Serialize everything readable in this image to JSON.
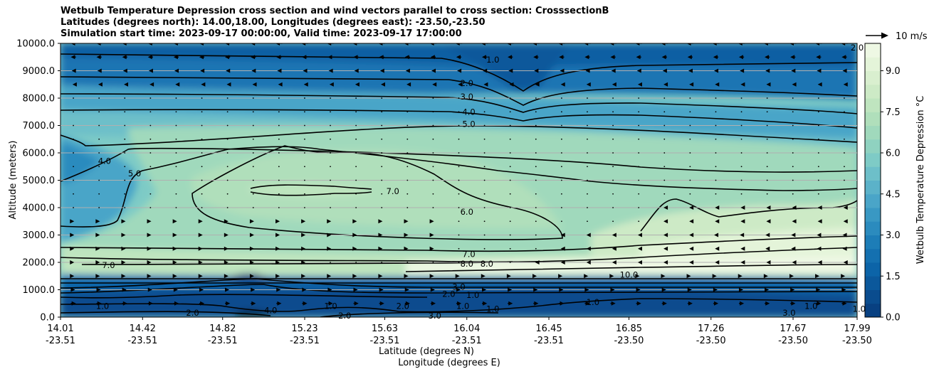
{
  "chart_data": {
    "type": "heatmap",
    "title_lines": [
      "Wetbulb Temperature Depression cross section and wind vectors parallel to cross section: CrosssectionB",
      "Latitudes (degrees north): 14.00,18.00, Longitudes (degrees east): -23.50,-23.50",
      "Simulation start time: 2023-09-17 00:00:00, Valid time: 2023-09-17 17:00:00"
    ],
    "ylabel": "Altitude (meters)",
    "xlabel_lines": [
      "Latitude (degrees N)",
      "Longitude (degrees E)"
    ],
    "ylim": [
      0,
      10000
    ],
    "y_ticks": [
      {
        "value": 0,
        "label": "0.0"
      },
      {
        "value": 1000,
        "label": "1000.0"
      },
      {
        "value": 2000,
        "label": "2000.0"
      },
      {
        "value": 3000,
        "label": "3000.0"
      },
      {
        "value": 4000,
        "label": "4000.0"
      },
      {
        "value": 5000,
        "label": "5000.0"
      },
      {
        "value": 6000,
        "label": "6000.0"
      },
      {
        "value": 7000,
        "label": "7000.0"
      },
      {
        "value": 8000,
        "label": "8000.0"
      },
      {
        "value": 9000,
        "label": "9000.0"
      },
      {
        "value": 10000,
        "label": "10000.0"
      }
    ],
    "x_range": [
      14.01,
      17.99
    ],
    "x_ticks": [
      {
        "lat": 14.01,
        "lat_label": "14.01",
        "lon_label": "-23.51"
      },
      {
        "lat": 14.42,
        "lat_label": "14.42",
        "lon_label": "-23.51"
      },
      {
        "lat": 14.82,
        "lat_label": "14.82",
        "lon_label": "-23.51"
      },
      {
        "lat": 15.23,
        "lat_label": "15.23",
        "lon_label": "-23.51"
      },
      {
        "lat": 15.63,
        "lat_label": "15.63",
        "lon_label": "-23.51"
      },
      {
        "lat": 16.04,
        "lat_label": "16.04",
        "lon_label": "-23.51"
      },
      {
        "lat": 16.45,
        "lat_label": "16.45",
        "lon_label": "-23.51"
      },
      {
        "lat": 16.85,
        "lat_label": "16.85",
        "lon_label": "-23.50"
      },
      {
        "lat": 17.26,
        "lat_label": "17.26",
        "lon_label": "-23.50"
      },
      {
        "lat": 17.67,
        "lat_label": "17.67",
        "lon_label": "-23.50"
      },
      {
        "lat": 17.99,
        "lat_label": "17.99",
        "lon_label": "-23.50"
      }
    ],
    "colorbar": {
      "label": "Wetbulb Temperature Depression $^\\circ$C",
      "label_display": "Wetbulb Temperature Depression °C",
      "range": [
        0,
        10
      ],
      "ticks": [
        "0.0",
        "1.5",
        "3.0",
        "4.5",
        "6.0",
        "7.5",
        "9.0"
      ],
      "tick_values": [
        0,
        1.5,
        3.0,
        4.5,
        6.0,
        7.5,
        9.0
      ],
      "step": 0.5,
      "colors": [
        "#084081",
        "#0a4c8e",
        "#0b589b",
        "#0c64a8",
        "#1470b0",
        "#1d7db7",
        "#2b8bbe",
        "#3998c3",
        "#4aa5c8",
        "#5bb2c9",
        "#6dbfc9",
        "#7ecbc6",
        "#8fd2c0",
        "#a0d9bc",
        "#b0dfbb",
        "#bfe5bf",
        "#cdeac6",
        "#d9efcf",
        "#e4f4d9",
        "#eef8e4"
      ]
    },
    "wind_reference": {
      "label": "10 m/s",
      "speed": 10
    },
    "contour_labels": [
      {
        "text": "1.0",
        "lat": 16.17,
        "alt": 9400
      },
      {
        "text": "2.0",
        "lat": 16.04,
        "alt": 8550
      },
      {
        "text": "3.0",
        "lat": 16.04,
        "alt": 8050
      },
      {
        "text": "4.0",
        "lat": 16.05,
        "alt": 7500
      },
      {
        "text": "5.0",
        "lat": 16.05,
        "alt": 7050
      },
      {
        "text": "4.0",
        "lat": 14.23,
        "alt": 5700
      },
      {
        "text": "5.0",
        "lat": 14.38,
        "alt": 5250
      },
      {
        "text": "7.0",
        "lat": 15.67,
        "alt": 4600
      },
      {
        "text": "6.0",
        "lat": 16.04,
        "alt": 3850
      },
      {
        "text": "7.0",
        "lat": 16.05,
        "alt": 2300
      },
      {
        "text": "8.0",
        "lat": 16.04,
        "alt": 1950
      },
      {
        "text": "8.0",
        "lat": 16.14,
        "alt": 1950
      },
      {
        "text": "7.0",
        "lat": 14.25,
        "alt": 1900
      },
      {
        "text": "10.0",
        "lat": 16.85,
        "alt": 1550
      },
      {
        "text": "1.0",
        "lat": 14.22,
        "alt": 400
      },
      {
        "text": "2.0",
        "lat": 14.67,
        "alt": 150
      },
      {
        "text": "4.0",
        "lat": 15.06,
        "alt": 250
      },
      {
        "text": "1.0",
        "lat": 15.36,
        "alt": 400
      },
      {
        "text": "2.0",
        "lat": 15.43,
        "alt": 50
      },
      {
        "text": "2.0",
        "lat": 15.72,
        "alt": 400
      },
      {
        "text": "3.0",
        "lat": 15.88,
        "alt": 50
      },
      {
        "text": "1.0",
        "lat": 16.02,
        "alt": 400
      },
      {
        "text": "1.0",
        "lat": 16.07,
        "alt": 800
      },
      {
        "text": "3.0",
        "lat": 16.0,
        "alt": 1100
      },
      {
        "text": "2.0",
        "lat": 15.95,
        "alt": 850
      },
      {
        "text": "1.0",
        "lat": 16.17,
        "alt": 300
      },
      {
        "text": "1.0",
        "lat": 16.67,
        "alt": 550
      },
      {
        "text": "3.0",
        "lat": 17.65,
        "alt": 150
      },
      {
        "text": "1.0",
        "lat": 17.76,
        "alt": 400
      },
      {
        "text": "1.0",
        "lat": 18.0,
        "alt": 300
      },
      {
        "text": "2.0",
        "lat": 17.99,
        "alt": 9850
      }
    ],
    "wind_levels": [
      {
        "alt": 10000,
        "u": [
          -3,
          -3,
          -3,
          -3,
          -3,
          -3,
          -3,
          -3,
          -4,
          -4,
          -4,
          -4,
          -4,
          -4,
          -4,
          -4,
          -4,
          -4,
          -4,
          -4,
          -4,
          -4,
          -4,
          -4,
          -4,
          -4,
          -4,
          -4,
          -4,
          -4,
          -4
        ]
      },
      {
        "alt": 9500,
        "u": [
          -3,
          -3,
          -3,
          -3,
          -3,
          -3,
          -3,
          -3,
          -3,
          -3,
          -3,
          -3,
          -3,
          -3,
          -3,
          -3,
          -3,
          -3,
          -3,
          -3,
          -3,
          -3,
          -3,
          -3,
          -3,
          -3,
          -3,
          -3,
          -3,
          -3,
          -3
        ]
      },
      {
        "alt": 9000,
        "u": [
          -2,
          -2,
          -2,
          -2,
          -2,
          -2,
          -2,
          -2,
          -2,
          -2,
          -2,
          -2,
          -2,
          -2,
          -2,
          -2,
          -2,
          -2,
          -2,
          -2,
          -2,
          -2,
          -2,
          -2,
          -2,
          -2,
          -2,
          -2,
          -2,
          -2,
          -2
        ]
      },
      {
        "alt": 8500,
        "u": [
          -1,
          -1,
          -1,
          -1,
          -1,
          -1,
          -1,
          -1,
          -1,
          -1,
          -1,
          -1,
          -1,
          -1,
          -1,
          -1,
          -1,
          -1,
          -1,
          -1,
          -1,
          -1,
          -1,
          -1,
          -1,
          -1,
          -1,
          -1,
          -1,
          -1,
          -1
        ]
      },
      {
        "alt": 8000,
        "u": [
          0,
          0,
          0,
          0,
          0,
          0,
          0,
          0,
          0,
          0,
          0,
          0,
          0,
          0,
          0,
          0,
          0,
          0,
          0,
          0,
          0,
          0,
          0,
          0,
          0,
          0,
          0,
          0,
          0,
          0,
          0
        ]
      },
      {
        "alt": 7500,
        "u": [
          0,
          0,
          0,
          0,
          0,
          0,
          0,
          0,
          0,
          0,
          0,
          0,
          0,
          0,
          0,
          0,
          0,
          0,
          0,
          0,
          0,
          0,
          0,
          0,
          0,
          0,
          0,
          0,
          0,
          0,
          0
        ]
      },
      {
        "alt": 7000,
        "u": [
          0,
          0,
          0,
          0,
          0,
          0,
          0,
          0,
          0,
          0,
          0,
          0,
          0,
          0,
          0,
          0,
          0,
          0,
          0,
          0,
          0,
          0,
          0,
          0,
          0,
          0,
          0,
          0,
          0,
          0,
          0
        ]
      },
      {
        "alt": 6500,
        "u": [
          0,
          0,
          0,
          0,
          0,
          0,
          0,
          0,
          0,
          0,
          0,
          0,
          0,
          0,
          0,
          0,
          0,
          0,
          0,
          0,
          0,
          0,
          0,
          0,
          0,
          0,
          0,
          0,
          0,
          0,
          0
        ]
      },
      {
        "alt": 6000,
        "u": [
          0,
          0,
          0,
          0,
          0,
          0,
          0,
          0,
          0,
          0,
          0,
          0,
          0,
          0,
          0,
          0,
          0,
          0,
          0,
          0,
          0,
          0,
          0,
          0,
          0,
          0,
          0,
          0,
          0,
          0,
          0
        ]
      },
      {
        "alt": 5500,
        "u": [
          0,
          0,
          0,
          0,
          0,
          0,
          0,
          0,
          0,
          0,
          0,
          0,
          0,
          0,
          0,
          0,
          0,
          0,
          0,
          0,
          0,
          0,
          0,
          0,
          0,
          0,
          0,
          0,
          0,
          0,
          0
        ]
      },
      {
        "alt": 5000,
        "u": [
          0,
          0,
          0,
          0,
          0,
          0,
          0,
          0,
          0,
          0,
          0,
          0,
          0,
          0,
          0,
          0,
          0,
          0,
          0,
          0,
          0,
          0,
          0,
          0,
          0,
          0,
          0,
          0,
          0,
          0,
          0
        ]
      },
      {
        "alt": 4500,
        "u": [
          0,
          0,
          0,
          0,
          0,
          0,
          0,
          0,
          0,
          0,
          0,
          0,
          0,
          0,
          0,
          0,
          0,
          0,
          0,
          0,
          0,
          0,
          0,
          0,
          0,
          0,
          0,
          0,
          0,
          0,
          0
        ]
      },
      {
        "alt": 4000,
        "u": [
          0,
          0,
          0,
          0,
          0,
          0,
          0,
          0,
          0,
          0,
          0,
          0,
          0,
          0,
          0,
          0,
          0,
          0,
          0,
          0,
          0,
          0,
          0,
          -1,
          -1,
          -1,
          -1,
          -1,
          -1,
          -1,
          -1
        ]
      },
      {
        "alt": 3500,
        "u": [
          1,
          1,
          1,
          1,
          1,
          1,
          1,
          1,
          1,
          1,
          1,
          1,
          1,
          1,
          1,
          0,
          0,
          0,
          0,
          0,
          0,
          0,
          0,
          -1,
          -1,
          -1,
          -1,
          -1,
          -1,
          -1,
          -1
        ]
      },
      {
        "alt": 3000,
        "u": [
          1,
          1,
          1,
          1,
          1,
          1,
          1,
          1,
          1,
          1,
          1,
          1,
          1,
          1,
          1,
          0,
          0,
          0,
          0,
          -1,
          -1,
          -1,
          -1,
          -1,
          -1,
          -2,
          -2,
          -2,
          -2,
          -2,
          -2
        ]
      },
      {
        "alt": 2500,
        "u": [
          1,
          1,
          1,
          1,
          1,
          1,
          1,
          1,
          1,
          1,
          1,
          1,
          1,
          1,
          1,
          0,
          0,
          0,
          0,
          -1,
          -1,
          -1,
          -1,
          -1,
          -1,
          -1,
          -1,
          -2,
          -2,
          -2,
          -2
        ]
      },
      {
        "alt": 2000,
        "u": [
          1,
          1,
          1,
          1,
          1,
          1,
          1,
          1,
          1,
          1,
          0,
          0,
          0,
          0,
          0,
          0,
          0,
          0,
          -1,
          -1,
          -1,
          -1,
          -1,
          -1,
          -1,
          -1,
          -1,
          -1,
          -1,
          -1,
          -1
        ]
      },
      {
        "alt": 1500,
        "u": [
          1,
          1,
          1,
          1,
          1,
          1,
          1,
          1,
          1,
          1,
          1,
          1,
          1,
          1,
          1,
          1,
          1,
          1,
          1,
          1,
          1,
          1,
          1,
          1,
          1,
          1,
          1,
          1,
          1,
          1,
          1
        ]
      },
      {
        "alt": 1000,
        "u": [
          2,
          2,
          2,
          2,
          2,
          2,
          2,
          2,
          2,
          2,
          2,
          2,
          2,
          2,
          2,
          2,
          2,
          2,
          2,
          2,
          2,
          2,
          2,
          2,
          2,
          2,
          2,
          2,
          2,
          2,
          2
        ]
      },
      {
        "alt": 500,
        "u": [
          3,
          3,
          3,
          3,
          3,
          3,
          3,
          3,
          3,
          3,
          3,
          3,
          3,
          3,
          3,
          3,
          3,
          3,
          3,
          3,
          3,
          3,
          3,
          3,
          3,
          3,
          3,
          3,
          3,
          3,
          3
        ]
      }
    ]
  }
}
